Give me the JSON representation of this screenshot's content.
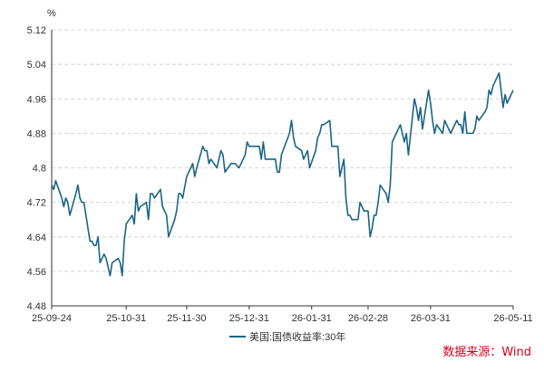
{
  "chart_data": {
    "type": "line",
    "unit": "%",
    "ylim": [
      4.48,
      5.12
    ],
    "y_ticks": [
      "5.12",
      "5.04",
      "4.96",
      "4.88",
      "4.8",
      "4.72",
      "4.64",
      "4.56",
      "4.48"
    ],
    "x_ticks": [
      {
        "date": "2025-09-24",
        "label": "25-09-24"
      },
      {
        "date": "2025-10-31",
        "label": "25-10-31"
      },
      {
        "date": "2025-11-30",
        "label": "25-11-30"
      },
      {
        "date": "2025-12-31",
        "label": "25-12-31"
      },
      {
        "date": "2026-01-31",
        "label": "26-01-31"
      },
      {
        "date": "2026-02-28",
        "label": "26-02-28"
      },
      {
        "date": "2026-03-31",
        "label": "26-03-31"
      },
      {
        "date": "2026-05-11",
        "label": "26-05-11"
      }
    ],
    "grid": true,
    "legend_position": "bottom-center",
    "series": [
      {
        "name": "美国:国债收益率:30年",
        "color": "#1a6585",
        "points": [
          [
            "2025-09-24",
            4.76
          ],
          [
            "2025-09-25",
            4.75
          ],
          [
            "2025-09-26",
            4.77
          ],
          [
            "2025-09-29",
            4.73
          ],
          [
            "2025-09-30",
            4.71
          ],
          [
            "2025-10-01",
            4.73
          ],
          [
            "2025-10-02",
            4.72
          ],
          [
            "2025-10-03",
            4.69
          ],
          [
            "2025-10-06",
            4.74
          ],
          [
            "2025-10-07",
            4.76
          ],
          [
            "2025-10-08",
            4.73
          ],
          [
            "2025-10-09",
            4.72
          ],
          [
            "2025-10-10",
            4.72
          ],
          [
            "2025-10-13",
            4.63
          ],
          [
            "2025-10-14",
            4.63
          ],
          [
            "2025-10-15",
            4.62
          ],
          [
            "2025-10-16",
            4.62
          ],
          [
            "2025-10-17",
            4.64
          ],
          [
            "2025-10-18",
            4.58
          ],
          [
            "2025-10-20",
            4.6
          ],
          [
            "2025-10-21",
            4.59
          ],
          [
            "2025-10-22",
            4.57
          ],
          [
            "2025-10-23",
            4.55
          ],
          [
            "2025-10-24",
            4.58
          ],
          [
            "2025-10-27",
            4.59
          ],
          [
            "2025-10-28",
            4.58
          ],
          [
            "2025-10-29",
            4.55
          ],
          [
            "2025-10-30",
            4.63
          ],
          [
            "2025-10-31",
            4.67
          ],
          [
            "2025-11-03",
            4.69
          ],
          [
            "2025-11-04",
            4.67
          ],
          [
            "2025-11-05",
            4.74
          ],
          [
            "2025-11-06",
            4.7
          ],
          [
            "2025-11-07",
            4.71
          ],
          [
            "2025-11-10",
            4.72
          ],
          [
            "2025-11-11",
            4.68
          ],
          [
            "2025-11-12",
            4.74
          ],
          [
            "2025-11-13",
            4.74
          ],
          [
            "2025-11-14",
            4.73
          ],
          [
            "2025-11-17",
            4.75
          ],
          [
            "2025-11-18",
            4.71
          ],
          [
            "2025-11-19",
            4.7
          ],
          [
            "2025-11-20",
            4.69
          ],
          [
            "2025-11-21",
            4.64
          ],
          [
            "2025-11-24",
            4.68
          ],
          [
            "2025-11-25",
            4.7
          ],
          [
            "2025-11-26",
            4.74
          ],
          [
            "2025-11-27",
            4.74
          ],
          [
            "2025-11-28",
            4.73
          ],
          [
            "2025-11-30",
            4.78
          ],
          [
            "2025-12-01",
            4.79
          ],
          [
            "2025-12-02",
            4.8
          ],
          [
            "2025-12-03",
            4.81
          ],
          [
            "2025-12-04",
            4.78
          ],
          [
            "2025-12-05",
            4.8
          ],
          [
            "2025-12-08",
            4.85
          ],
          [
            "2025-12-09",
            4.84
          ],
          [
            "2025-12-10",
            4.84
          ],
          [
            "2025-12-11",
            4.81
          ],
          [
            "2025-12-12",
            4.82
          ],
          [
            "2025-12-15",
            4.8
          ],
          [
            "2025-12-16",
            4.82
          ],
          [
            "2025-12-17",
            4.84
          ],
          [
            "2025-12-18",
            4.83
          ],
          [
            "2025-12-19",
            4.79
          ],
          [
            "2025-12-22",
            4.81
          ],
          [
            "2025-12-23",
            4.81
          ],
          [
            "2025-12-24",
            4.81
          ],
          [
            "2025-12-26",
            4.8
          ],
          [
            "2025-12-29",
            4.83
          ],
          [
            "2025-12-30",
            4.86
          ],
          [
            "2025-12-31",
            4.85
          ],
          [
            "2026-01-02",
            4.85
          ],
          [
            "2026-01-05",
            4.85
          ],
          [
            "2026-01-06",
            4.82
          ],
          [
            "2026-01-07",
            4.86
          ],
          [
            "2026-01-08",
            4.82
          ],
          [
            "2026-01-09",
            4.82
          ],
          [
            "2026-01-12",
            4.82
          ],
          [
            "2026-01-13",
            4.82
          ],
          [
            "2026-01-14",
            4.79
          ],
          [
            "2026-01-15",
            4.79
          ],
          [
            "2026-01-16",
            4.83
          ],
          [
            "2026-01-20",
            4.88
          ],
          [
            "2026-01-21",
            4.91
          ],
          [
            "2026-01-22",
            4.87
          ],
          [
            "2026-01-23",
            4.85
          ],
          [
            "2026-01-26",
            4.84
          ],
          [
            "2026-01-27",
            4.82
          ],
          [
            "2026-01-28",
            4.83
          ],
          [
            "2026-01-29",
            4.84
          ],
          [
            "2026-01-30",
            4.8
          ],
          [
            "2026-02-02",
            4.84
          ],
          [
            "2026-02-03",
            4.87
          ],
          [
            "2026-02-04",
            4.88
          ],
          [
            "2026-02-05",
            4.9
          ],
          [
            "2026-02-06",
            4.9
          ],
          [
            "2026-02-09",
            4.91
          ],
          [
            "2026-02-10",
            4.85
          ],
          [
            "2026-02-11",
            4.85
          ],
          [
            "2026-02-12",
            4.85
          ],
          [
            "2026-02-13",
            4.85
          ],
          [
            "2026-02-14",
            4.78
          ],
          [
            "2026-02-16",
            4.82
          ],
          [
            "2026-02-17",
            4.73
          ],
          [
            "2026-02-18",
            4.69
          ],
          [
            "2026-02-19",
            4.69
          ],
          [
            "2026-02-20",
            4.68
          ],
          [
            "2026-02-23",
            4.68
          ],
          [
            "2026-02-24",
            4.72
          ],
          [
            "2026-02-25",
            4.71
          ],
          [
            "2026-02-26",
            4.7
          ],
          [
            "2026-02-27",
            4.7
          ],
          [
            "2026-02-28",
            4.7
          ],
          [
            "2026-03-01",
            4.64
          ],
          [
            "2026-03-02",
            4.66
          ],
          [
            "2026-03-03",
            4.69
          ],
          [
            "2026-03-04",
            4.69
          ],
          [
            "2026-03-05",
            4.72
          ],
          [
            "2026-03-06",
            4.76
          ],
          [
            "2026-03-09",
            4.74
          ],
          [
            "2026-03-10",
            4.72
          ],
          [
            "2026-03-11",
            4.76
          ],
          [
            "2026-03-12",
            4.86
          ],
          [
            "2026-03-13",
            4.87
          ],
          [
            "2026-03-16",
            4.9
          ],
          [
            "2026-03-17",
            4.88
          ],
          [
            "2026-03-18",
            4.86
          ],
          [
            "2026-03-19",
            4.88
          ],
          [
            "2026-03-20",
            4.83
          ],
          [
            "2026-03-23",
            4.96
          ],
          [
            "2026-03-24",
            4.94
          ],
          [
            "2026-03-25",
            4.91
          ],
          [
            "2026-03-26",
            4.94
          ],
          [
            "2026-03-27",
            4.89
          ],
          [
            "2026-03-30",
            4.98
          ],
          [
            "2026-03-31",
            4.95
          ],
          [
            "2026-04-01",
            4.91
          ],
          [
            "2026-04-02",
            4.88
          ],
          [
            "2026-04-03",
            4.9
          ],
          [
            "2026-04-06",
            4.88
          ],
          [
            "2026-04-07",
            4.91
          ],
          [
            "2026-04-08",
            4.9
          ],
          [
            "2026-04-09",
            4.89
          ],
          [
            "2026-04-10",
            4.88
          ],
          [
            "2026-04-13",
            4.91
          ],
          [
            "2026-04-14",
            4.9
          ],
          [
            "2026-04-15",
            4.9
          ],
          [
            "2026-04-16",
            4.88
          ],
          [
            "2026-04-17",
            4.93
          ],
          [
            "2026-04-18",
            4.88
          ],
          [
            "2026-04-20",
            4.88
          ],
          [
            "2026-04-21",
            4.88
          ],
          [
            "2026-04-22",
            4.89
          ],
          [
            "2026-04-23",
            4.92
          ],
          [
            "2026-04-24",
            4.91
          ],
          [
            "2026-04-27",
            4.93
          ],
          [
            "2026-04-28",
            4.94
          ],
          [
            "2026-04-29",
            4.98
          ],
          [
            "2026-04-30",
            4.97
          ],
          [
            "2026-05-01",
            4.99
          ],
          [
            "2026-05-04",
            5.02
          ],
          [
            "2026-05-05",
            4.98
          ],
          [
            "2026-05-06",
            4.94
          ],
          [
            "2026-05-07",
            4.97
          ],
          [
            "2026-05-08",
            4.95
          ],
          [
            "2026-05-11",
            4.98
          ]
        ]
      }
    ]
  },
  "source_text": "数据来源：Wind"
}
